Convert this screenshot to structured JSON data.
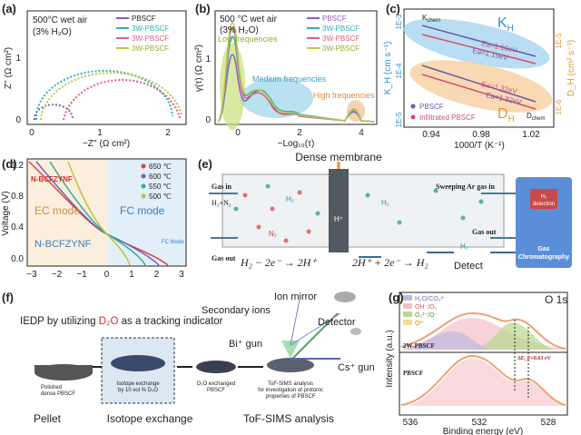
{
  "panels": {
    "a": {
      "label": "(a)",
      "condition": "500°C wet air",
      "humidity": "(3% H₂O)",
      "legend": [
        "PBSCF",
        "3W-PBSCF",
        "3W-PBSCF",
        "3W-PBSCF"
      ],
      "y_label": "Z'' (Ω cm²)",
      "x_label": "−Z'' (Ω cm²)",
      "yticks": [
        "0",
        "1"
      ],
      "xticks": [
        "0",
        "1",
        "2"
      ]
    },
    "b": {
      "label": "(b)",
      "condition": "500 °C wet air",
      "humidity": "(3% H₂O)",
      "legend": [
        "PBSCF",
        "3W-PBSCF",
        "3W-PBSCF",
        "3W-PBSCF"
      ],
      "low": "Low frequencies",
      "medium": "Medium frequencies",
      "high": "High frequencies",
      "y_label": "γ(τ) (Ω cm²)",
      "x_label": "−Log₁₀(τ)",
      "yticks": [
        "0",
        "1"
      ],
      "xticks": [
        "0",
        "2",
        "4"
      ]
    },
    "c": {
      "label": "(c)",
      "kh": "K",
      "kh_sub": "H",
      "dh": "D",
      "dh_sub": "H",
      "k_chem": "K",
      "k_chem_sub": "chem",
      "d_chem": "D",
      "d_chem_sub": "chem",
      "ea": [
        "Ea=1.16eV",
        "Ea=1.19eV",
        "Ea=1.32eV",
        "Ea=1.32eV"
      ],
      "legend": [
        "PBSCF",
        "Infiltrated PBSCF"
      ],
      "y_label": "K_H (cm s⁻¹)",
      "y2_label": "D_H (cm² s⁻¹)",
      "yticks": [
        "1E-3",
        "1E-4",
        "1E-5"
      ],
      "y2ticks": [
        "1E-5",
        "1E-6"
      ],
      "xticks": [
        "0.94",
        "0.98",
        "1.02"
      ],
      "x_label": "1000/T (K⁻¹)"
    },
    "d": {
      "label": "(d)",
      "legend": [
        "650 ℃",
        "600 ℃",
        "550 ℃",
        "500 ℃"
      ],
      "material_top": "N-BCFZYNF",
      "ec": "EC mode",
      "fc": "FC mode",
      "material_bottom": "N-BCFZYNF",
      "fc_small": "FC Mode",
      "y_label": "Voltage (V)",
      "yticks": [
        "1.2",
        "0.8",
        "0.4",
        "0.0"
      ],
      "xticks": [
        "−3",
        "−2",
        "−1",
        "0",
        "1",
        "2",
        "3"
      ]
    },
    "e": {
      "label": "(e)",
      "membrane": "Dense membrane",
      "gas_in": "Gas in",
      "feed": "H₂+N₂",
      "gas_out_left": "Gas out",
      "sweep": "Sweeping Ar gas in",
      "gas_out_right": "Gas out",
      "h2_left": "H₂",
      "h2_right": "H₂",
      "h2_out": "H₂",
      "n2": "N₂",
      "proton": "H⁺",
      "eq_left": "H₂ − 2e⁻ → 2H⁺",
      "eq_right": "2H⁺ + 2e⁻ → H₂",
      "detect": "Detect",
      "h2_detection": [
        "H₂",
        "detection"
      ],
      "gc": [
        "Gas",
        "Chromatography"
      ]
    },
    "f": {
      "label": "(f)",
      "title": [
        "IEDP by utilizing ",
        "D₂O",
        " as a tracking indicator"
      ],
      "ion_mirror": "Ion mirror",
      "secondary_ions": "Secondary ions",
      "detector": "Detector",
      "bi_gun": "Bi⁺ gun",
      "cs_gun": "Cs⁺ gun",
      "step1": [
        "Polished",
        "dense PBSCF"
      ],
      "step2": [
        "Isotope exchange",
        "by 10 vol % D₂O"
      ],
      "step3": [
        "D₂O exchanged",
        "PBSCF"
      ],
      "step4": [
        "ToF-SIMS analysis",
        "for investigation of protonic",
        "properties of PBSCF"
      ],
      "stage1": "Pellet",
      "stage2": "Isotope exchange",
      "stage3": "ToF-SIMS analysis"
    },
    "g": {
      "label": "(g)",
      "peak": "O 1s",
      "legend": [
        "H₂O/CO₃²⁻",
        "OH⁻/O₂",
        "O₂²⁻/O⁻",
        "O²⁻"
      ],
      "top_sample": "2W-PBSCF",
      "shift": "ΔE_F=0.63 eV",
      "bottom_sample": "PBSCF",
      "y_label": "Intensity (a.u.)",
      "xticks": [
        "536",
        "532",
        "528"
      ],
      "x_label": "Binding energy (eV)"
    }
  }
}
